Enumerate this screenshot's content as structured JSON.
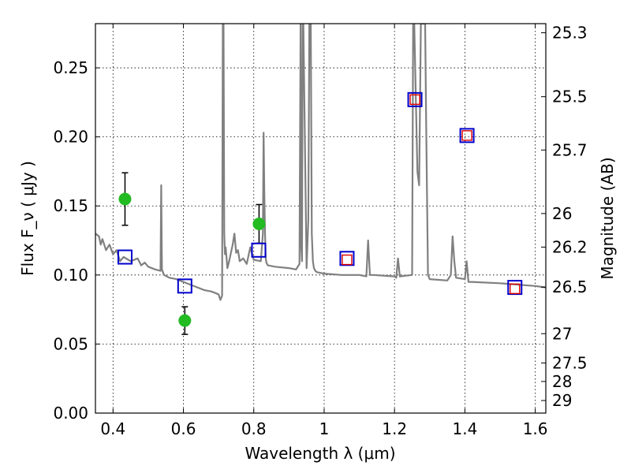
{
  "chart_data": {
    "type": "scatter",
    "xlabel": "Wavelength  λ (μm)",
    "ylabel": "Flux  F_ν  ( μJy )",
    "ylabel_right": "Magnitude (AB)",
    "xlim": [
      0.35,
      1.63
    ],
    "ylim": [
      0.0,
      0.282
    ],
    "grid": true,
    "x_ticks": [
      0.4,
      0.6,
      0.8,
      1.0,
      1.2,
      1.4,
      1.6
    ],
    "x_tick_labels": [
      "0.4",
      "0.6",
      "0.8",
      "1",
      "1.2",
      "1.4",
      "1.6"
    ],
    "y_ticks": [
      0.0,
      0.05,
      0.1,
      0.15,
      0.2,
      0.25
    ],
    "y_tick_labels": [
      "0.00",
      "0.05",
      "0.10",
      "0.15",
      "0.20",
      "0.25"
    ],
    "right_ticks": [
      {
        "label": "25.3",
        "flux": 0.2754
      },
      {
        "label": "25.5",
        "flux": 0.2291
      },
      {
        "label": "25.7",
        "flux": 0.1905
      },
      {
        "label": "26",
        "flux": 0.1445
      },
      {
        "label": "26.2",
        "flux": 0.1202
      },
      {
        "label": "26.5",
        "flux": 0.0912
      },
      {
        "label": "27",
        "flux": 0.0575
      },
      {
        "label": "27.5",
        "flux": 0.0363
      },
      {
        "label": "28",
        "flux": 0.0229
      },
      {
        "label": "29",
        "flux": 0.0091
      }
    ],
    "series": [
      {
        "marker": "line",
        "color": "#808080",
        "x": [
          0.35,
          0.36,
          0.365,
          0.37,
          0.38,
          0.39,
          0.4,
          0.41,
          0.42,
          0.43,
          0.45,
          0.47,
          0.48,
          0.49,
          0.5,
          0.52,
          0.535,
          0.537,
          0.539,
          0.545,
          0.56,
          0.58,
          0.6,
          0.62,
          0.64,
          0.66,
          0.68,
          0.7,
          0.705,
          0.71,
          0.712,
          0.714,
          0.716,
          0.718,
          0.72,
          0.725,
          0.73,
          0.74,
          0.745,
          0.75,
          0.755,
          0.76,
          0.77,
          0.78,
          0.79,
          0.8,
          0.82,
          0.826,
          0.828,
          0.83,
          0.832,
          0.834,
          0.836,
          0.84,
          0.86,
          0.9,
          0.92,
          0.93,
          0.933,
          0.935,
          0.937,
          0.939,
          0.941,
          0.95,
          0.955,
          0.958,
          0.96,
          0.962,
          0.965,
          0.968,
          0.971,
          0.975,
          0.98,
          1.0,
          1.05,
          1.1,
          1.12,
          1.125,
          1.13,
          1.14,
          1.2,
          1.205,
          1.21,
          1.215,
          1.25,
          1.253,
          1.256,
          1.265,
          1.27,
          1.275,
          1.278,
          1.281,
          1.284,
          1.287,
          1.29,
          1.295,
          1.3,
          1.35,
          1.36,
          1.365,
          1.37,
          1.375,
          1.4,
          1.405,
          1.41,
          1.42,
          1.5,
          1.6,
          1.63
        ],
        "y": [
          0.13,
          0.128,
          0.122,
          0.126,
          0.118,
          0.122,
          0.115,
          0.118,
          0.11,
          0.113,
          0.11,
          0.112,
          0.107,
          0.109,
          0.106,
          0.104,
          0.103,
          0.165,
          0.104,
          0.1,
          0.098,
          0.097,
          0.095,
          0.093,
          0.091,
          0.089,
          0.088,
          0.086,
          0.082,
          0.085,
          0.282,
          0.282,
          0.13,
          0.115,
          0.12,
          0.105,
          0.11,
          0.122,
          0.13,
          0.116,
          0.118,
          0.11,
          0.112,
          0.108,
          0.12,
          0.111,
          0.11,
          0.13,
          0.203,
          0.16,
          0.13,
          0.112,
          0.109,
          0.107,
          0.106,
          0.105,
          0.104,
          0.108,
          0.282,
          0.12,
          0.11,
          0.282,
          0.282,
          0.105,
          0.14,
          0.282,
          0.282,
          0.282,
          0.13,
          0.11,
          0.105,
          0.103,
          0.102,
          0.101,
          0.1,
          0.1,
          0.099,
          0.125,
          0.1,
          0.1,
          0.099,
          0.098,
          0.112,
          0.099,
          0.1,
          0.282,
          0.282,
          0.175,
          0.165,
          0.282,
          0.282,
          0.282,
          0.282,
          0.282,
          0.21,
          0.1,
          0.097,
          0.096,
          0.1,
          0.128,
          0.11,
          0.098,
          0.097,
          0.11,
          0.095,
          0.095,
          0.094,
          0.092,
          0.091
        ]
      },
      {
        "marker": "circle",
        "color": "#22bb22",
        "x": [
          0.434,
          0.604,
          0.815
        ],
        "y": [
          0.155,
          0.067,
          0.137
        ],
        "yerr": [
          0.019,
          0.01,
          0.014
        ]
      },
      {
        "marker": "square-open",
        "color": "#0000cc",
        "x": [
          0.434,
          0.604,
          0.814,
          1.065,
          1.258,
          1.406,
          1.542
        ],
        "y": [
          0.113,
          0.092,
          0.118,
          0.112,
          0.227,
          0.201,
          0.091
        ]
      },
      {
        "marker": "square-open",
        "color": "#dd0000",
        "x": [
          1.065,
          1.258,
          1.406,
          1.542
        ],
        "y": [
          0.111,
          0.227,
          0.201,
          0.09
        ]
      }
    ]
  }
}
